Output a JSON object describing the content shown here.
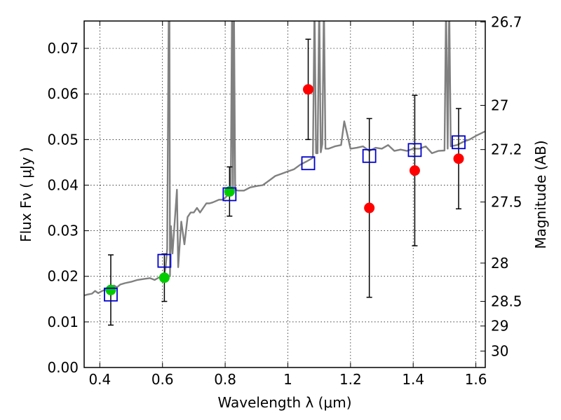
{
  "chart_data": {
    "type": "scatter",
    "xlabel": "Wavelength  λ (μm)",
    "ylabel": "Flux  Fν  ( μJy )",
    "ylabel_right": "Magnitude (AB)",
    "xlim": [
      0.35,
      1.63
    ],
    "ylim": [
      0.0,
      0.076
    ],
    "grid": true,
    "x_ticks": [
      0.4,
      0.6,
      0.8,
      1.0,
      1.2,
      1.4,
      1.6
    ],
    "x_tick_labels": [
      "0.4",
      "0.6",
      "0.8",
      "1",
      "1.2",
      "1.4",
      "1.6"
    ],
    "y_ticks": [
      0.0,
      0.01,
      0.02,
      0.03,
      0.04,
      0.05,
      0.06,
      0.07
    ],
    "y_tick_labels": [
      "0.00",
      "0.01",
      "0.02",
      "0.03",
      "0.04",
      "0.05",
      "0.06",
      "0.07"
    ],
    "right_ticks": [
      {
        "label": "26.7",
        "flux": 0.0758
      },
      {
        "label": "27",
        "flux": 0.0575
      },
      {
        "label": "27.2",
        "flux": 0.0478
      },
      {
        "label": "27.5",
        "flux": 0.0363
      },
      {
        "label": "28",
        "flux": 0.0229
      },
      {
        "label": "28.5",
        "flux": 0.0145
      },
      {
        "label": "29",
        "flux": 0.0091
      },
      {
        "label": "30",
        "flux": 0.0036
      }
    ],
    "series": [
      {
        "marker": "circle",
        "color": "#00cc00",
        "points": [
          {
            "x": 0.435,
            "y": 0.017,
            "err": 0.0077
          },
          {
            "x": 0.606,
            "y": 0.0197,
            "err": 0.0052
          },
          {
            "x": 0.814,
            "y": 0.0386,
            "err": 0.0054
          }
        ]
      },
      {
        "marker": "circle",
        "color": "#ff0000",
        "points": [
          {
            "x": 1.065,
            "y": 0.061,
            "err": 0.011
          },
          {
            "x": 1.26,
            "y": 0.035,
            "err": 0.0196
          },
          {
            "x": 1.405,
            "y": 0.0432,
            "err": 0.0165
          },
          {
            "x": 1.545,
            "y": 0.0458,
            "err": 0.011
          }
        ]
      },
      {
        "marker": "square-open",
        "color": "#0000cc",
        "points": [
          {
            "x": 0.435,
            "y": 0.016
          },
          {
            "x": 0.606,
            "y": 0.0234
          },
          {
            "x": 0.814,
            "y": 0.038
          },
          {
            "x": 1.065,
            "y": 0.0448
          },
          {
            "x": 1.26,
            "y": 0.0464
          },
          {
            "x": 1.405,
            "y": 0.0477
          },
          {
            "x": 1.545,
            "y": 0.0494
          }
        ]
      }
    ],
    "spectrum": {
      "color": "#808080",
      "x": [
        0.35,
        0.36,
        0.375,
        0.385,
        0.395,
        0.405,
        0.415,
        0.425,
        0.435,
        0.445,
        0.455,
        0.465,
        0.48,
        0.5,
        0.52,
        0.54,
        0.56,
        0.575,
        0.59,
        0.605,
        0.61,
        0.615,
        0.62,
        0.622,
        0.624,
        0.627,
        0.632,
        0.64,
        0.646,
        0.65,
        0.66,
        0.67,
        0.68,
        0.69,
        0.7,
        0.71,
        0.72,
        0.73,
        0.74,
        0.75,
        0.76,
        0.77,
        0.78,
        0.79,
        0.8,
        0.81,
        0.818,
        0.822,
        0.825,
        0.828,
        0.832,
        0.84,
        0.86,
        0.88,
        0.9,
        0.92,
        0.94,
        0.96,
        0.98,
        1.0,
        1.02,
        1.04,
        1.06,
        1.08,
        1.085,
        1.09,
        1.095,
        1.1,
        1.105,
        1.11,
        1.115,
        1.12,
        1.13,
        1.15,
        1.17,
        1.18,
        1.19,
        1.2,
        1.22,
        1.24,
        1.26,
        1.28,
        1.3,
        1.32,
        1.34,
        1.36,
        1.38,
        1.4,
        1.42,
        1.44,
        1.46,
        1.48,
        1.5,
        1.505,
        1.51,
        1.515,
        1.52,
        1.54,
        1.56,
        1.58,
        1.6,
        1.63
      ],
      "y": [
        0.0158,
        0.016,
        0.0162,
        0.0168,
        0.0163,
        0.0167,
        0.017,
        0.0172,
        0.0175,
        0.018,
        0.0176,
        0.0182,
        0.0185,
        0.0188,
        0.0192,
        0.0194,
        0.0196,
        0.0192,
        0.0198,
        0.02,
        0.022,
        0.026,
        0.08,
        0.08,
        0.02,
        0.031,
        0.025,
        0.033,
        0.039,
        0.022,
        0.032,
        0.027,
        0.033,
        0.034,
        0.034,
        0.035,
        0.034,
        0.035,
        0.036,
        0.036,
        0.0362,
        0.0365,
        0.0368,
        0.0368,
        0.0372,
        0.038,
        0.039,
        0.08,
        0.039,
        0.08,
        0.039,
        0.0388,
        0.0388,
        0.0395,
        0.0398,
        0.04,
        0.041,
        0.042,
        0.0425,
        0.043,
        0.0435,
        0.0445,
        0.0452,
        0.046,
        0.08,
        0.047,
        0.047,
        0.08,
        0.0472,
        0.049,
        0.08,
        0.048,
        0.048,
        0.0485,
        0.0488,
        0.054,
        0.051,
        0.048,
        0.0482,
        0.0485,
        0.0475,
        0.0482,
        0.048,
        0.0488,
        0.0475,
        0.0478,
        0.0475,
        0.048,
        0.048,
        0.0485,
        0.047,
        0.0475,
        0.0476,
        0.08,
        0.048,
        0.08,
        0.0485,
        0.0488,
        0.0495,
        0.05,
        0.0508,
        0.0518
      ]
    }
  }
}
